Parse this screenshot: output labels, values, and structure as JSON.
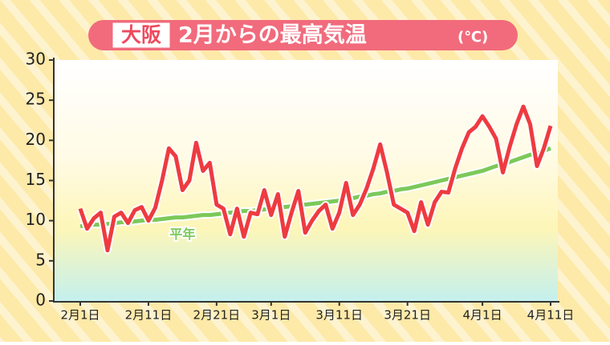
{
  "chart_data": {
    "type": "line",
    "location": "大阪",
    "title": "2月からの最高気温",
    "unit_label": "(℃)",
    "categories": [
      "2月1日",
      null,
      null,
      null,
      null,
      null,
      null,
      null,
      null,
      null,
      "2月11日",
      null,
      null,
      null,
      null,
      null,
      null,
      null,
      null,
      null,
      "2月21日",
      null,
      null,
      null,
      null,
      null,
      null,
      null,
      "3月1日",
      null,
      null,
      null,
      null,
      null,
      null,
      null,
      null,
      null,
      "3月11日",
      null,
      null,
      null,
      null,
      null,
      null,
      null,
      null,
      null,
      "3月21日",
      null,
      null,
      null,
      null,
      null,
      null,
      null,
      null,
      null,
      null,
      "4月1日",
      null,
      null,
      null,
      null,
      null,
      null,
      null,
      null,
      null,
      "4月11日"
    ],
    "series": [
      {
        "color": "#ee3b40",
        "values": [
          11.5,
          9.0,
          10.3,
          11.0,
          6.3,
          10.5,
          11.0,
          9.7,
          11.3,
          11.7,
          10.0,
          11.6,
          15.0,
          19.0,
          18.0,
          13.8,
          15.0,
          19.7,
          16.2,
          17.2,
          12.0,
          11.5,
          8.3,
          11.5,
          8.0,
          11.0,
          10.8,
          13.8,
          10.7,
          13.3,
          8.0,
          11.0,
          13.7,
          8.5,
          10.0,
          11.2,
          12.0,
          9.0,
          11.0,
          14.7,
          10.7,
          12.0,
          14.0,
          16.5,
          19.5,
          16.0,
          12.0,
          11.5,
          11.0,
          8.7,
          12.3,
          9.5,
          12.3,
          13.6,
          13.5,
          16.5,
          19.0,
          21.0,
          21.7,
          23.0,
          21.7,
          20.2,
          16.0,
          19.2,
          22.0,
          24.2,
          22.0,
          16.8,
          19.0,
          21.8
        ]
      },
      {
        "name": "平年",
        "color": "#7cc95a",
        "values": [
          9.3,
          9.4,
          9.5,
          9.5,
          9.6,
          9.7,
          9.8,
          9.8,
          9.9,
          10.0,
          10.1,
          10.1,
          10.2,
          10.3,
          10.4,
          10.4,
          10.5,
          10.6,
          10.7,
          10.7,
          10.8,
          10.9,
          11.0,
          11.1,
          11.2,
          11.2,
          11.3,
          11.4,
          11.5,
          11.6,
          11.7,
          11.8,
          11.9,
          12.0,
          12.1,
          12.2,
          12.3,
          12.4,
          12.5,
          12.7,
          12.8,
          13.0,
          13.1,
          13.3,
          13.4,
          13.6,
          13.7,
          13.9,
          14.0,
          14.2,
          14.4,
          14.6,
          14.8,
          15.0,
          15.2,
          15.4,
          15.6,
          15.8,
          16.0,
          16.2,
          16.5,
          16.8,
          17.0,
          17.3,
          17.6,
          17.9,
          18.2,
          18.4,
          18.7,
          19.0
        ]
      }
    ],
    "ylim": [
      0,
      30
    ],
    "yticks": [
      0,
      5,
      10,
      15,
      20,
      25,
      30
    ]
  }
}
